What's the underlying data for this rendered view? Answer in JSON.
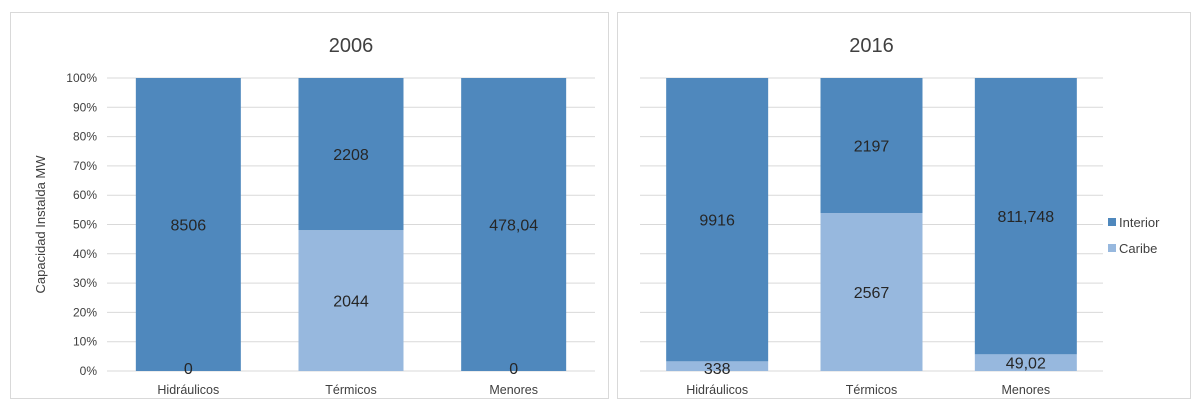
{
  "colors": {
    "interior": "#4f88bd",
    "caribe": "#97b8de",
    "grid": "#d9d9d9",
    "axis_text": "#404040"
  },
  "chart_data": [
    {
      "type": "bar",
      "stacked": "percent",
      "title": "2006",
      "ylabel": "Capacidad Instalda MW",
      "yticks": [
        "0%",
        "10%",
        "20%",
        "30%",
        "40%",
        "50%",
        "60%",
        "70%",
        "80%",
        "90%",
        "100%"
      ],
      "categories": [
        "Hidráulicos",
        "Térmicos",
        "Menores"
      ],
      "series": [
        {
          "name": "Caribe",
          "values": [
            0,
            2044,
            0
          ],
          "labels": [
            "0",
            "2044",
            "0"
          ]
        },
        {
          "name": "Interior",
          "values": [
            8506,
            2208,
            478.04
          ],
          "labels": [
            "8506",
            "2208",
            "478,04"
          ]
        }
      ]
    },
    {
      "type": "bar",
      "stacked": "percent",
      "title": "2016",
      "ylabel": "",
      "yticks": [],
      "categories": [
        "Hidráulicos",
        "Térmicos",
        "Menores"
      ],
      "series": [
        {
          "name": "Caribe",
          "values": [
            338,
            2567,
            49.02
          ],
          "labels": [
            "338",
            "2567",
            "49,02"
          ]
        },
        {
          "name": "Interior",
          "values": [
            9916,
            2197,
            811.748
          ],
          "labels": [
            "9916",
            "2197",
            "811,748"
          ]
        }
      ]
    }
  ],
  "legend": {
    "items": [
      {
        "label": "Interior",
        "color": "#4f88bd"
      },
      {
        "label": "Caribe",
        "color": "#97b8de"
      }
    ]
  }
}
